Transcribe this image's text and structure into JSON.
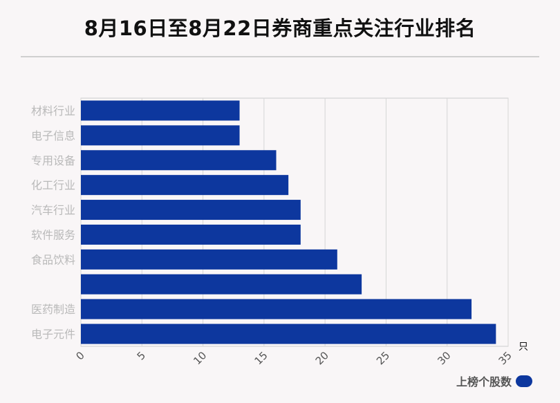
{
  "title": "8月16日至8月22日券商重点关注行业排名",
  "chart_data": {
    "type": "bar",
    "orientation": "horizontal",
    "title": "8月16日至8月22日券商重点关注行业排名",
    "categories": [
      "材料行业",
      "电子信息",
      "专用设备",
      "化工行业",
      "汽车行业",
      "软件服务",
      "食品饮料",
      "",
      "医药制造",
      "电子元件"
    ],
    "series": [
      {
        "name": "上榜个股数",
        "values": [
          13,
          13,
          16,
          17,
          18,
          18,
          21,
          23,
          32,
          34
        ]
      }
    ],
    "xlim": [
      0,
      35
    ],
    "xticks": [
      "0",
      "5",
      "10",
      "15",
      "20",
      "25",
      "30",
      "35"
    ],
    "xunit": "只",
    "grid": true,
    "legend": "bottom-right",
    "bar_color": "#0d379e"
  }
}
